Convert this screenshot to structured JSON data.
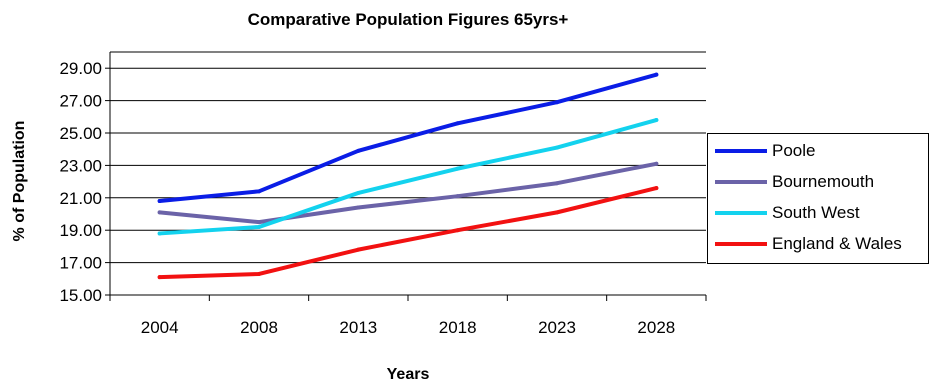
{
  "chart_data": {
    "type": "line",
    "title": "Comparative Population Figures 65yrs+",
    "xlabel": "Years",
    "ylabel": "% of Population",
    "categories": [
      "2004",
      "2008",
      "2013",
      "2018",
      "2023",
      "2028"
    ],
    "ylim": [
      15.0,
      30.0
    ],
    "yticks": [
      "15.00",
      "17.00",
      "19.00",
      "21.00",
      "23.00",
      "25.00",
      "27.00",
      "29.00"
    ],
    "grid": true,
    "legend_position": "right",
    "series": [
      {
        "name": "Poole",
        "color": "#0a1de6",
        "values": [
          20.8,
          21.4,
          23.9,
          25.6,
          26.9,
          28.6
        ]
      },
      {
        "name": "Bournemouth",
        "color": "#6b63a8",
        "values": [
          20.1,
          19.5,
          20.4,
          21.1,
          21.9,
          23.1
        ]
      },
      {
        "name": "South West",
        "color": "#13d2ee",
        "values": [
          18.8,
          19.2,
          21.3,
          22.8,
          24.1,
          25.8
        ]
      },
      {
        "name": "England & Wales",
        "color": "#f21111",
        "values": [
          16.1,
          16.3,
          17.8,
          19.0,
          20.1,
          21.6
        ]
      }
    ]
  }
}
